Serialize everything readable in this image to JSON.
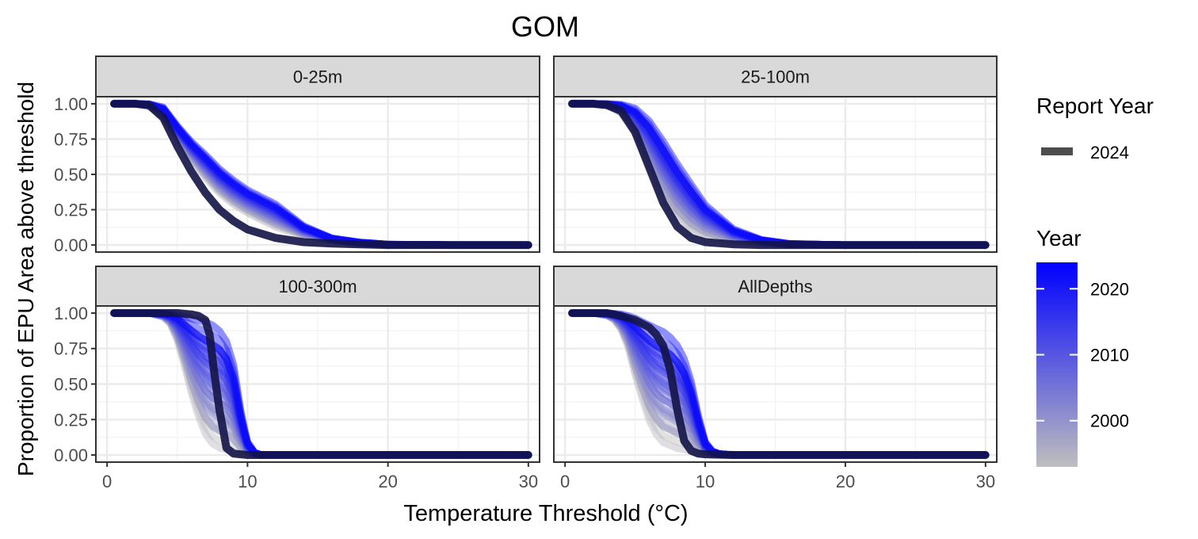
{
  "chart_data": {
    "type": "line",
    "title": "GOM",
    "xlabel": "Temperature Threshold (°C)",
    "ylabel": "Proportion of EPU Area above threshold",
    "xlim": [
      -0.8,
      30.8
    ],
    "ylim": [
      -0.05,
      1.05
    ],
    "x_ticks": [
      0,
      10,
      20,
      30
    ],
    "x_tick_labels": [
      "0",
      "10",
      "20",
      "30"
    ],
    "y_ticks": [
      0,
      0.25,
      0.5,
      0.75,
      1.0
    ],
    "y_tick_labels": [
      "0.00",
      "0.25",
      "0.50",
      "0.75",
      "1.00"
    ],
    "grid": true,
    "legend": {
      "position": "right",
      "report_year": {
        "title": "Report Year",
        "entries": [
          {
            "label": "2024",
            "color": "#4d4d4d"
          }
        ]
      },
      "year": {
        "title": "Year",
        "low_color": "#bebebe",
        "high_color": "#0000ff",
        "range": [
          1993,
          2024
        ],
        "ticks": [
          2000,
          2010,
          2020
        ],
        "tick_labels": [
          "2000",
          "2010",
          "2020"
        ]
      }
    },
    "highlight_color": "#131347",
    "panels": [
      {
        "label": "0-25m",
        "highlight": {
          "x": [
            0.5,
            2,
            3,
            4,
            5,
            6,
            7,
            8,
            9,
            10,
            12,
            14,
            16,
            18,
            20,
            25,
            30
          ],
          "y": [
            1,
            1,
            0.99,
            0.9,
            0.7,
            0.52,
            0.37,
            0.25,
            0.17,
            0.11,
            0.05,
            0.02,
            0.01,
            0.005,
            0,
            0,
            0
          ]
        },
        "early": {
          "x": [
            0.5,
            2,
            3,
            4,
            5,
            6,
            7,
            8,
            9,
            10,
            12,
            14,
            16,
            18,
            20,
            25,
            30
          ],
          "y": [
            1,
            1,
            0.98,
            0.9,
            0.75,
            0.6,
            0.47,
            0.36,
            0.28,
            0.22,
            0.12,
            0.06,
            0.03,
            0.01,
            0,
            0,
            0
          ]
        },
        "late": {
          "x": [
            0.5,
            2,
            3,
            4,
            5,
            6,
            7,
            8,
            9,
            10,
            12,
            14,
            16,
            18,
            20,
            25,
            30
          ],
          "y": [
            1,
            1,
            1,
            0.98,
            0.85,
            0.74,
            0.65,
            0.55,
            0.47,
            0.4,
            0.3,
            0.14,
            0.05,
            0.02,
            0.005,
            0,
            0
          ]
        }
      },
      {
        "label": "25-100m",
        "highlight": {
          "x": [
            0.5,
            2,
            3,
            4,
            5,
            6,
            7,
            8,
            9,
            10,
            12,
            14,
            16,
            20,
            30
          ],
          "y": [
            1,
            1,
            0.99,
            0.95,
            0.8,
            0.55,
            0.3,
            0.13,
            0.05,
            0.02,
            0.005,
            0,
            0,
            0,
            0
          ]
        },
        "early": {
          "x": [
            0.5,
            2,
            3,
            4,
            5,
            6,
            7,
            8,
            9,
            10,
            12,
            14,
            16,
            20,
            30
          ],
          "y": [
            1,
            1,
            0.99,
            0.93,
            0.78,
            0.55,
            0.33,
            0.18,
            0.09,
            0.05,
            0.02,
            0.01,
            0,
            0,
            0
          ]
        },
        "late": {
          "x": [
            0.5,
            2,
            3,
            4,
            5,
            6,
            7,
            8,
            9,
            10,
            12,
            14,
            16,
            20,
            30
          ],
          "y": [
            1,
            1,
            1,
            1,
            0.98,
            0.9,
            0.76,
            0.6,
            0.45,
            0.3,
            0.12,
            0.04,
            0.01,
            0,
            0
          ]
        }
      },
      {
        "label": "100-300m",
        "highlight": {
          "x": [
            0.5,
            3,
            5,
            6,
            6.5,
            7,
            7.3,
            7.6,
            8,
            8.5,
            9,
            10,
            15,
            20,
            30
          ],
          "y": [
            1,
            1,
            1,
            0.99,
            0.98,
            0.95,
            0.85,
            0.6,
            0.32,
            0.05,
            0.01,
            0,
            0,
            0,
            0
          ]
        },
        "early": {
          "x": [
            0.5,
            3,
            4,
            4.5,
            5,
            5.5,
            6,
            6.5,
            7,
            7.5,
            8,
            9,
            10,
            15,
            30
          ],
          "y": [
            1,
            1,
            0.97,
            0.92,
            0.8,
            0.62,
            0.42,
            0.25,
            0.12,
            0.05,
            0.02,
            0,
            0,
            0,
            0
          ]
        },
        "late": {
          "x": [
            0.5,
            3,
            5,
            7,
            7.5,
            8,
            8.5,
            9,
            9.3,
            9.6,
            10,
            10.5,
            11,
            15,
            30
          ],
          "y": [
            1,
            1,
            1,
            0.99,
            0.97,
            0.93,
            0.85,
            0.68,
            0.48,
            0.28,
            0.1,
            0.02,
            0,
            0,
            0
          ]
        }
      },
      {
        "label": "AllDepths",
        "highlight": {
          "x": [
            0.5,
            3,
            4,
            5,
            6,
            6.5,
            7,
            7.5,
            8,
            8.5,
            9,
            9.5,
            10,
            12,
            15,
            20,
            30
          ],
          "y": [
            1,
            1,
            0.98,
            0.95,
            0.9,
            0.85,
            0.77,
            0.6,
            0.32,
            0.1,
            0.03,
            0.01,
            0.005,
            0,
            0,
            0,
            0
          ]
        },
        "early": {
          "x": [
            0.5,
            2,
            3,
            3.5,
            4,
            4.5,
            5,
            5.5,
            6,
            6.5,
            7,
            8,
            9,
            10,
            12,
            15,
            30
          ],
          "y": [
            1,
            1,
            0.98,
            0.95,
            0.88,
            0.75,
            0.55,
            0.38,
            0.22,
            0.12,
            0.06,
            0.02,
            0.01,
            0,
            0,
            0,
            0
          ]
        },
        "late": {
          "x": [
            0.5,
            3,
            4,
            5,
            6,
            7,
            7.5,
            8,
            8.5,
            9,
            9.5,
            10,
            10.5,
            11,
            12,
            15,
            30
          ],
          "y": [
            1,
            1,
            1,
            0.99,
            0.96,
            0.92,
            0.88,
            0.82,
            0.72,
            0.55,
            0.3,
            0.1,
            0.03,
            0.01,
            0,
            0,
            0
          ]
        }
      }
    ]
  }
}
